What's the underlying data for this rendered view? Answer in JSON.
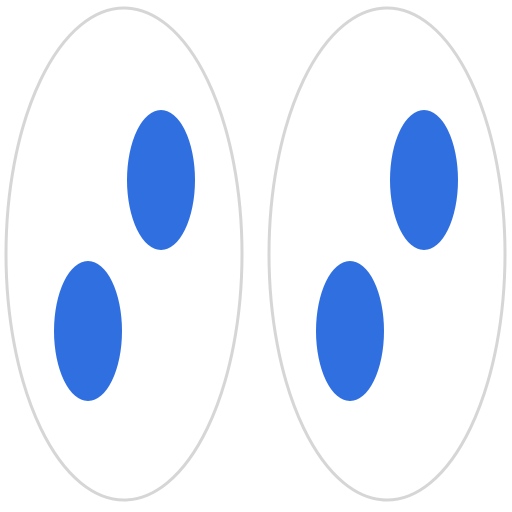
{
  "colors": {
    "background": "#ffffff",
    "outline": "#d6d6d6",
    "dot": "#2f6fe0"
  },
  "icons": {
    "left": "oval-with-two-dots-icon",
    "right": "oval-with-two-dots-icon"
  }
}
